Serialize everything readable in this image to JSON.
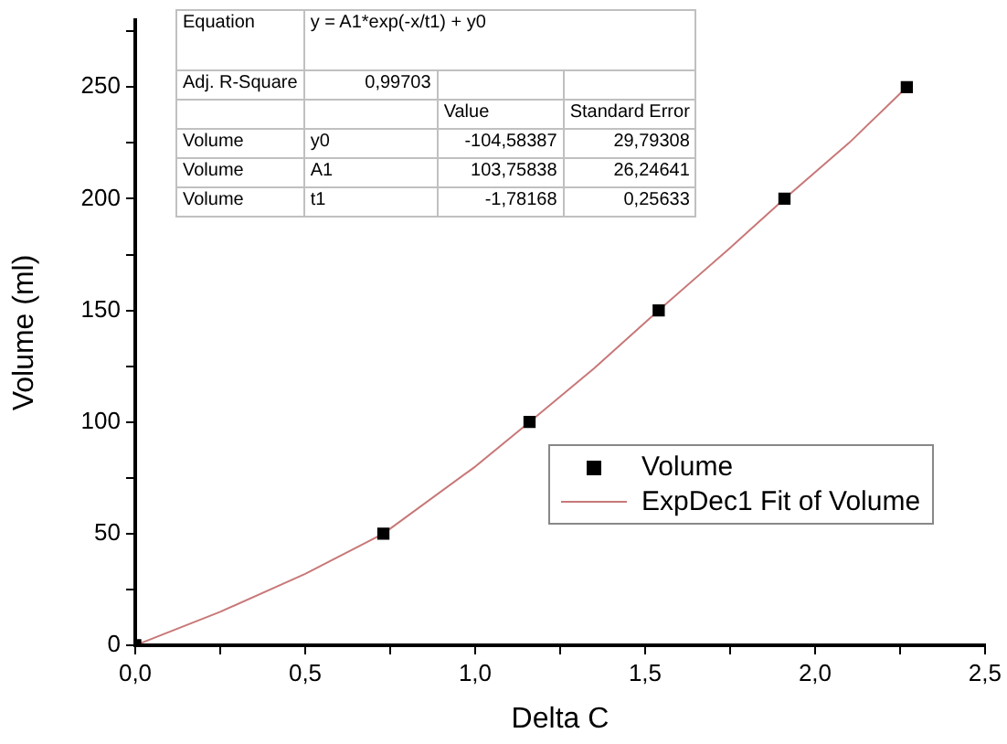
{
  "chart_data": {
    "type": "scatter",
    "xlabel": "Delta C",
    "ylabel": "Volume (ml)",
    "xlim": [
      0,
      2.5
    ],
    "xticks": [
      {
        "value": 0,
        "label": "0,0"
      },
      {
        "value": 0.25,
        "label": null
      },
      {
        "value": 0.5,
        "label": "0,5"
      },
      {
        "value": 0.75,
        "label": null
      },
      {
        "value": 1,
        "label": "1,0"
      },
      {
        "value": 1.25,
        "label": null
      },
      {
        "value": 1.5,
        "label": "1,5"
      },
      {
        "value": 1.75,
        "label": null
      },
      {
        "value": 2,
        "label": "2,0"
      },
      {
        "value": 2.25,
        "label": null
      },
      {
        "value": 2.5,
        "label": "2,5"
      }
    ],
    "ylim": [
      0,
      280
    ],
    "yticks": [
      0,
      {
        "value": 25,
        "label": null
      },
      50,
      {
        "value": 75,
        "label": null
      },
      100,
      {
        "value": 125,
        "label": null
      },
      150,
      {
        "value": 175,
        "label": null
      },
      200,
      {
        "value": 225,
        "label": null
      },
      250,
      {
        "value": 275,
        "label": null
      }
    ],
    "grid": false,
    "legend": "right",
    "marker": "square",
    "series": [
      {
        "name": "Volume",
        "type": "scatter",
        "color": "#000000",
        "x": [
          0,
          0.73,
          1.16,
          1.54,
          1.91,
          2.27
        ],
        "values": [
          0,
          50,
          100,
          150,
          200,
          250
        ]
      },
      {
        "name": "ExpDec1 Fit of Volume",
        "type": "line",
        "marker": "none",
        "line_style": "solid",
        "color": "#c87878",
        "x": [
          0,
          0.25,
          0.5,
          0.73,
          1.0,
          1.16,
          1.35,
          1.54,
          1.75,
          1.91,
          2.1,
          2.27
        ],
        "values": [
          0,
          15,
          32,
          50,
          80,
          100,
          124,
          150,
          178,
          200,
          225,
          250
        ]
      }
    ],
    "annotations": [
      "Equation",
      "y = A1*exp(-x/t1) + y0",
      "Adj. R-Square",
      "0,99703",
      "Value",
      "Standard Error",
      "Volume",
      "y0",
      "-104,58387",
      "29,79308",
      "Volume",
      "A1",
      "103,75838",
      "26,24641",
      "Volume",
      "t1",
      "-1,78168",
      "0,25633"
    ]
  }
}
